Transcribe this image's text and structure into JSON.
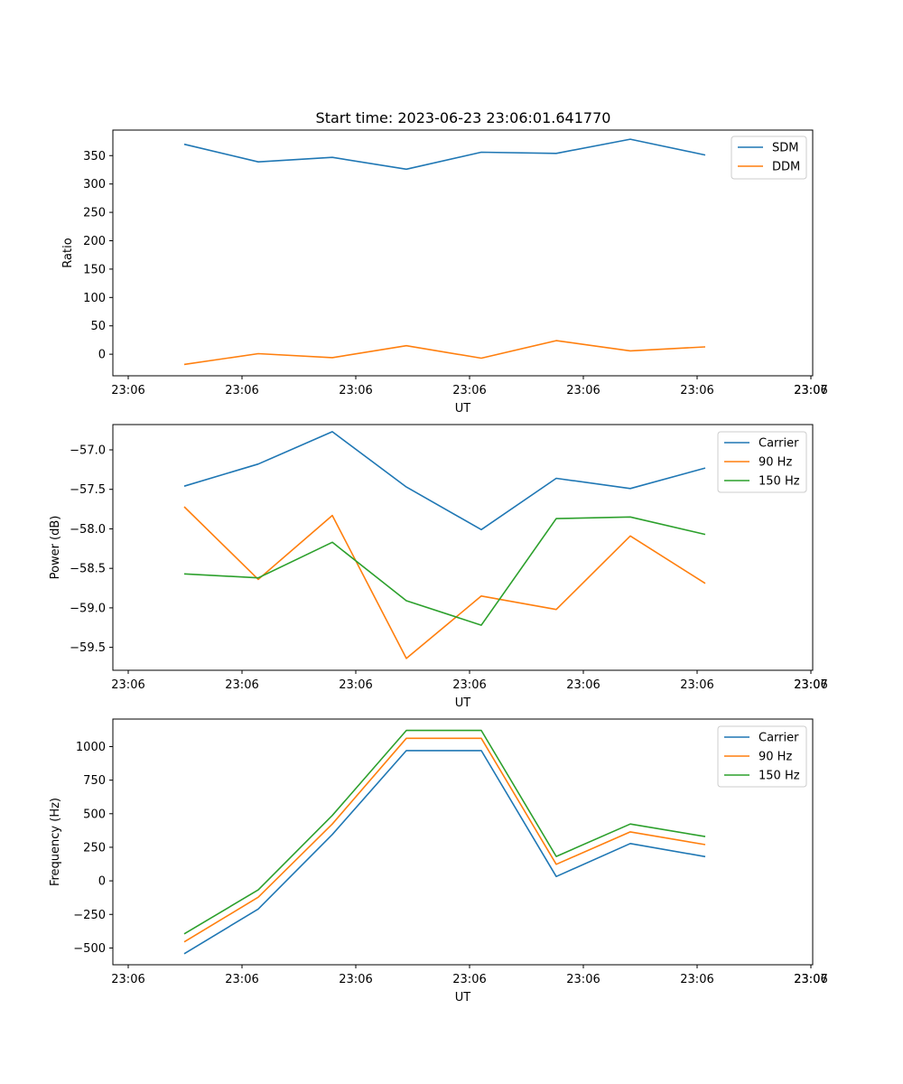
{
  "figure": {
    "title": "Start time: 2023-06-23 23:06:01.641770"
  },
  "chart_data": [
    {
      "type": "line",
      "title": "Start time: 2023-06-23 23:06:01.641770",
      "xlabel": "UT",
      "ylabel": "Ratio",
      "x_tick_labels": [
        "23:06",
        "23:06",
        "23:06",
        "23:06",
        "23:06",
        "23:06",
        "23:06",
        "23:07"
      ],
      "y_ticks": [
        0,
        50,
        100,
        150,
        200,
        250,
        300,
        350
      ],
      "ylim": [
        -38,
        395
      ],
      "grid": false,
      "legend": "top-right",
      "series": [
        {
          "name": "SDM",
          "color": "#1f77b4",
          "values": [
            370,
            339,
            347,
            326,
            356,
            354,
            379,
            351
          ]
        },
        {
          "name": "DDM",
          "color": "#ff7f0e",
          "values": [
            -18,
            1,
            -6,
            15,
            -7,
            24,
            6,
            13
          ]
        }
      ]
    },
    {
      "type": "line",
      "xlabel": "UT",
      "ylabel": "Power (dB)",
      "x_tick_labels": [
        "23:06",
        "23:06",
        "23:06",
        "23:06",
        "23:06",
        "23:06",
        "23:06",
        "23:07"
      ],
      "y_ticks": [
        -59.5,
        -59.0,
        -58.5,
        -58.0,
        -57.5,
        -57.0
      ],
      "y_tick_labels": [
        "−59.5",
        "−59.0",
        "−58.5",
        "−58.0",
        "−57.5",
        "−57.0"
      ],
      "ylim": [
        -59.79,
        -56.68
      ],
      "grid": false,
      "legend": "top-right",
      "series": [
        {
          "name": "Carrier",
          "color": "#1f77b4",
          "values": [
            -57.46,
            -57.18,
            -56.77,
            -57.47,
            -58.01,
            -57.36,
            -57.49,
            -57.23
          ]
        },
        {
          "name": "90 Hz",
          "color": "#ff7f0e",
          "values": [
            -57.72,
            -58.64,
            -57.83,
            -59.64,
            -58.85,
            -59.02,
            -58.09,
            -58.69
          ]
        },
        {
          "name": "150 Hz",
          "color": "#2ca02c",
          "values": [
            -58.57,
            -58.62,
            -58.17,
            -58.91,
            -59.22,
            -57.87,
            -57.85,
            -58.07
          ]
        }
      ]
    },
    {
      "type": "line",
      "xlabel": "UT",
      "ylabel": "Frequency (Hz)",
      "x_tick_labels": [
        "23:06",
        "23:06",
        "23:06",
        "23:06",
        "23:06",
        "23:06",
        "23:06",
        "23:07"
      ],
      "y_ticks": [
        -500,
        -250,
        0,
        250,
        500,
        750,
        1000
      ],
      "y_tick_labels": [
        "−500",
        "−250",
        "0",
        "250",
        "500",
        "750",
        "1000"
      ],
      "ylim": [
        -625,
        1205
      ],
      "grid": false,
      "legend": "top-right",
      "series": [
        {
          "name": "Carrier",
          "color": "#1f77b4",
          "values": [
            -543,
            -210,
            345,
            970,
            970,
            32,
            278,
            180
          ]
        },
        {
          "name": "90 Hz",
          "color": "#ff7f0e",
          "values": [
            -455,
            -122,
            423,
            1062,
            1062,
            123,
            365,
            270
          ]
        },
        {
          "name": "150 Hz",
          "color": "#2ca02c",
          "values": [
            -395,
            -67,
            487,
            1120,
            1120,
            182,
            423,
            330
          ]
        }
      ]
    }
  ]
}
